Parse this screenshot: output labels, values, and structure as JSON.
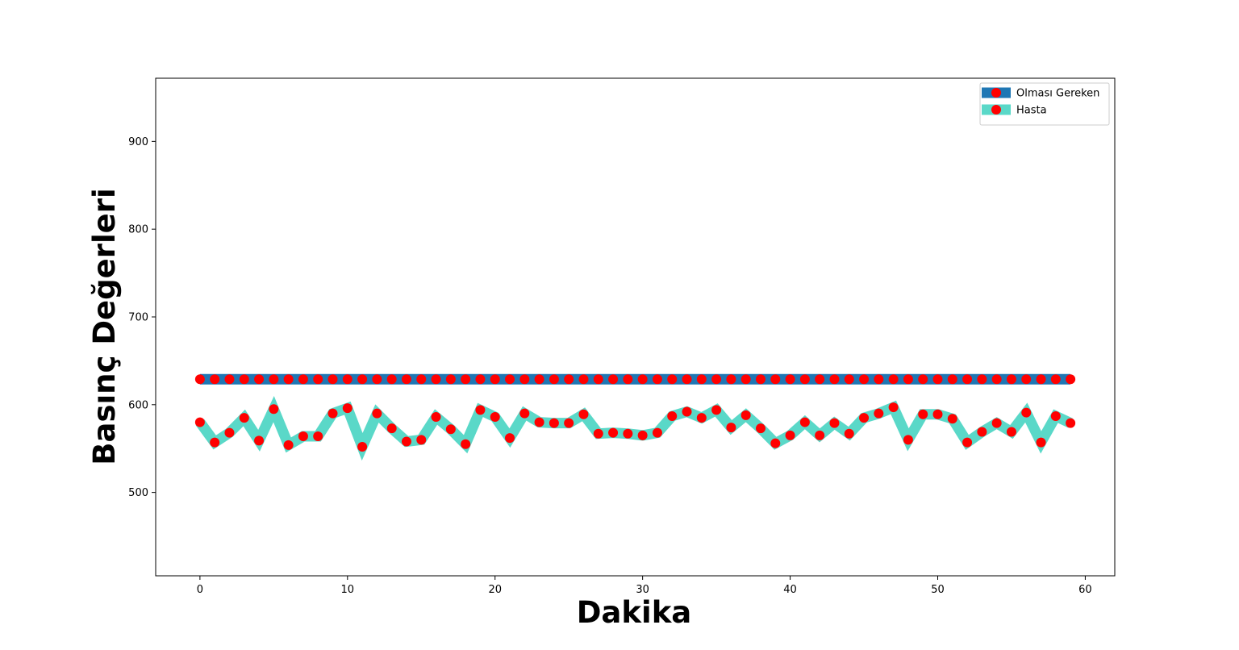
{
  "chart_data": {
    "type": "line",
    "title": "",
    "xlabel": "Dakika",
    "ylabel": "Basınç Değerleri",
    "xlim": [
      -3,
      62
    ],
    "ylim": [
      405,
      972
    ],
    "xticks": [
      0,
      10,
      20,
      30,
      40,
      50,
      60
    ],
    "yticks": [
      500,
      600,
      700,
      800,
      900
    ],
    "grid": false,
    "legend_position": "top-right",
    "x": [
      0,
      1,
      2,
      3,
      4,
      5,
      6,
      7,
      8,
      9,
      10,
      11,
      12,
      13,
      14,
      15,
      16,
      17,
      18,
      19,
      20,
      21,
      22,
      23,
      24,
      25,
      26,
      27,
      28,
      29,
      30,
      31,
      32,
      33,
      34,
      35,
      36,
      37,
      38,
      39,
      40,
      41,
      42,
      43,
      44,
      45,
      46,
      47,
      48,
      49,
      50,
      51,
      52,
      53,
      54,
      55,
      56,
      57,
      58,
      59
    ],
    "series": [
      {
        "name": "Olması Gereken",
        "line_color": "#1f77b4",
        "marker_color": "#ff0000",
        "values": [
          629,
          629,
          629,
          629,
          629,
          629,
          629,
          629,
          629,
          629,
          629,
          629,
          629,
          629,
          629,
          629,
          629,
          629,
          629,
          629,
          629,
          629,
          629,
          629,
          629,
          629,
          629,
          629,
          629,
          629,
          629,
          629,
          629,
          629,
          629,
          629,
          629,
          629,
          629,
          629,
          629,
          629,
          629,
          629,
          629,
          629,
          629,
          629,
          629,
          629,
          629,
          629,
          629,
          629,
          629,
          629,
          629,
          629,
          629,
          629
        ]
      },
      {
        "name": "Hasta",
        "line_color": "#5ad8c8",
        "marker_color": "#ff0000",
        "values": [
          580,
          557,
          568,
          585,
          559,
          595,
          554,
          564,
          564,
          590,
          596,
          552,
          590,
          573,
          558,
          560,
          586,
          572,
          555,
          594,
          586,
          562,
          590,
          580,
          579,
          579,
          589,
          567,
          568,
          567,
          565,
          568,
          587,
          592,
          585,
          594,
          574,
          588,
          573,
          556,
          565,
          580,
          565,
          579,
          567,
          585,
          590,
          597,
          560,
          589,
          589,
          584,
          557,
          569,
          579,
          569,
          591,
          557,
          587,
          579
        ]
      }
    ]
  }
}
